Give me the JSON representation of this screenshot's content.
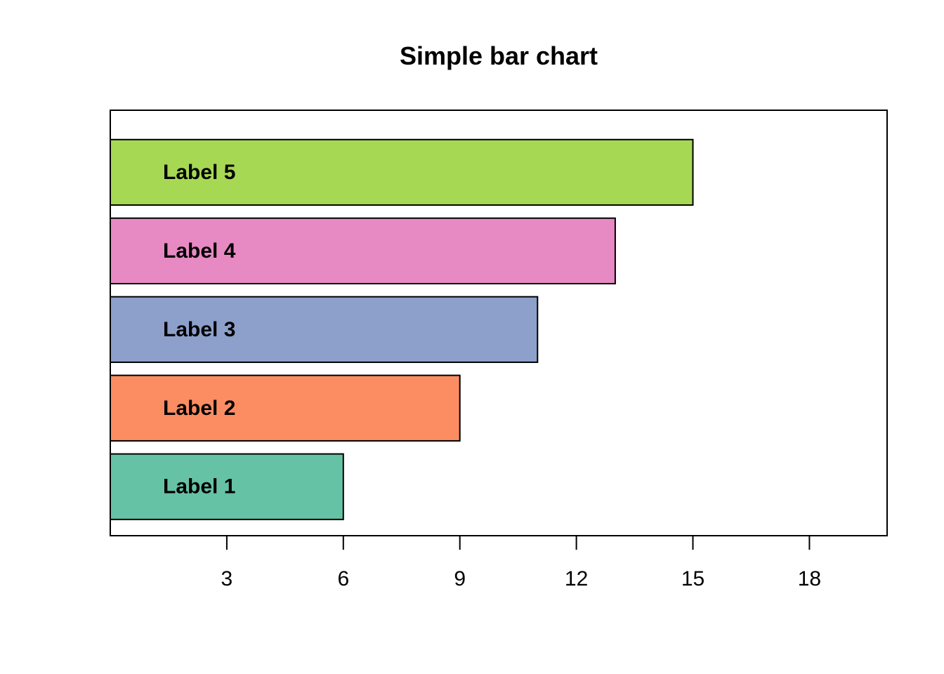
{
  "chart_data": {
    "type": "bar",
    "orientation": "horizontal",
    "title": "Simple bar chart",
    "xlabel": "",
    "ylabel": "",
    "categories": [
      "Label 1",
      "Label 2",
      "Label 3",
      "Label 4",
      "Label 5"
    ],
    "values": [
      6,
      9,
      11,
      13,
      15
    ],
    "colors": [
      "#66c2a5",
      "#fc8d62",
      "#8da0cb",
      "#e78ac3",
      "#a6d854"
    ],
    "xlim": [
      0,
      20
    ],
    "xticks": [
      3,
      6,
      9,
      12,
      15,
      18
    ],
    "grid": false,
    "legend": "none",
    "box": true
  }
}
